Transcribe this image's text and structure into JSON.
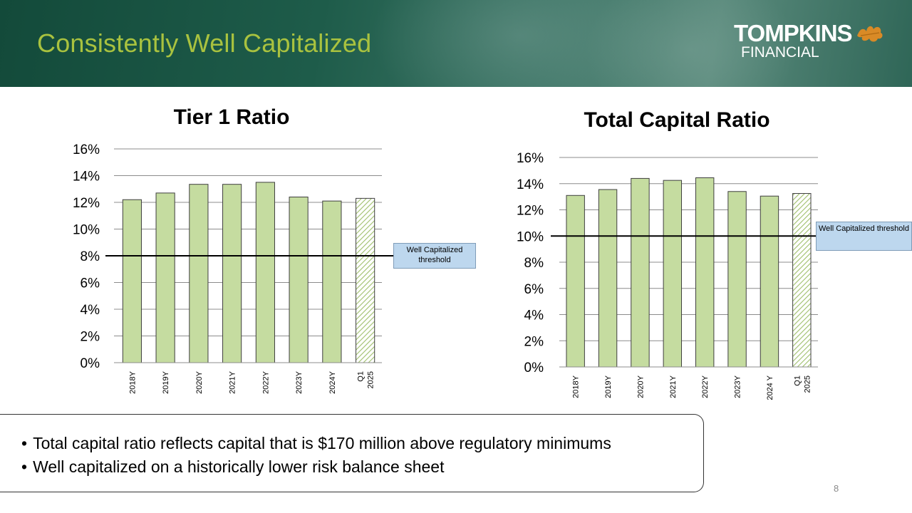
{
  "header": {
    "title": "Consistently Well Capitalized",
    "logo_line1": "TOMPKINS",
    "logo_line2": "FINANCIAL"
  },
  "bullets": [
    "Total capital ratio reflects capital that is $170 million above regulatory minimums",
    "Well capitalized on a historically lower risk balance sheet"
  ],
  "page_number": "8",
  "colors": {
    "bar": "#c5dca0",
    "title": "#a9c23f",
    "header": "#1e5c4a",
    "note": "#bdd7ee"
  },
  "chart_data": [
    {
      "type": "bar",
      "title": "Tier 1 Ratio",
      "categories": [
        "2018Y",
        "2019Y",
        "2020Y",
        "2021Y",
        "2022Y",
        "2023Y",
        "2024Y",
        "Q1 2025"
      ],
      "values": [
        12.2,
        12.7,
        13.35,
        13.35,
        13.5,
        12.4,
        12.1,
        12.3
      ],
      "hatched": [
        false,
        false,
        false,
        false,
        false,
        false,
        false,
        true
      ],
      "yticks": [
        "0%",
        "2%",
        "4%",
        "6%",
        "8%",
        "10%",
        "12%",
        "14%",
        "16%"
      ],
      "ylim": [
        0,
        16
      ],
      "threshold": 8,
      "threshold_label": "Well Capitalized threshold"
    },
    {
      "type": "bar",
      "title": "Total Capital Ratio",
      "categories": [
        "2018Y",
        "2019Y",
        "2020Y",
        "2021Y",
        "2022Y",
        "2023Y",
        "2024 Y",
        "Q1 2025"
      ],
      "values": [
        13.1,
        13.55,
        14.4,
        14.25,
        14.45,
        13.4,
        13.05,
        13.25
      ],
      "hatched": [
        false,
        false,
        false,
        false,
        false,
        false,
        false,
        true
      ],
      "yticks": [
        "0%",
        "2%",
        "4%",
        "6%",
        "8%",
        "10%",
        "12%",
        "14%",
        "16%"
      ],
      "ylim": [
        0,
        16
      ],
      "threshold": 10,
      "threshold_label": "Well Capitalized threshold"
    }
  ]
}
